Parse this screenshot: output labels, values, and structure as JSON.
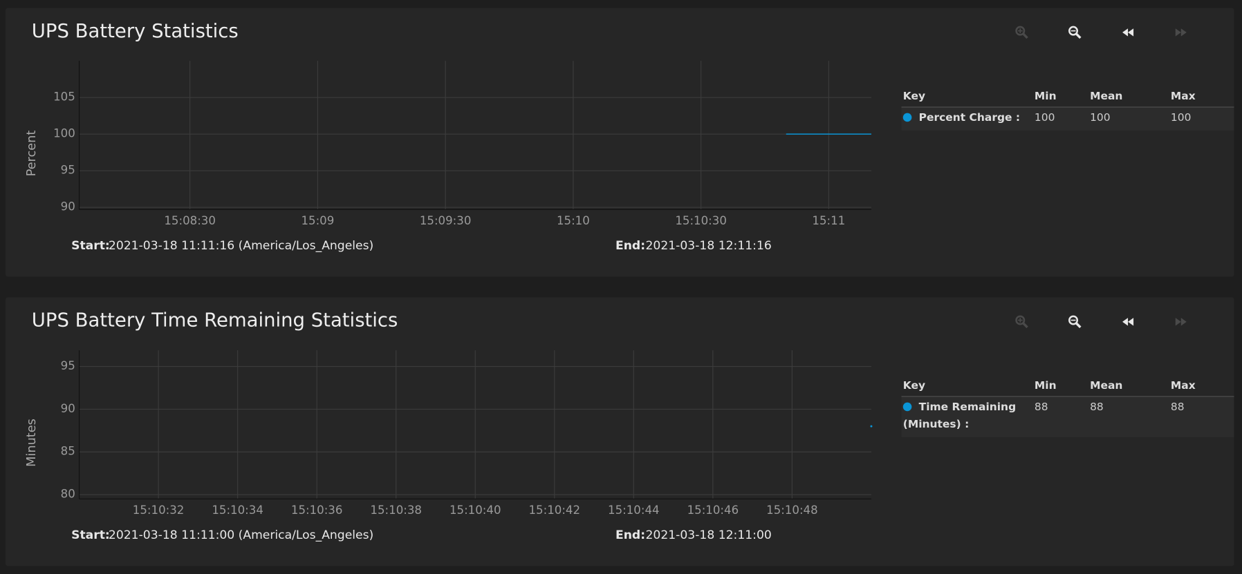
{
  "chart_data": [
    {
      "type": "line",
      "title": "UPS Battery Statistics",
      "y_label": "Percent",
      "x": [
        54650,
        54660,
        54670
      ],
      "xlim": [
        54484,
        54670
      ],
      "xticks": [
        {
          "value": 54510,
          "label": "15:08:30"
        },
        {
          "value": 54540,
          "label": "15:09"
        },
        {
          "value": 54570,
          "label": "15:09:30"
        },
        {
          "value": 54600,
          "label": "15:10"
        },
        {
          "value": 54630,
          "label": "15:10:30"
        },
        {
          "value": 54660,
          "label": "15:11"
        }
      ],
      "ylim": [
        89.7,
        110
      ],
      "yticks": [
        90,
        95,
        100,
        105
      ],
      "grid": true,
      "legend_header": [
        "Key",
        "Min",
        "Mean",
        "Max"
      ],
      "series": [
        {
          "name": "Percent Charge :",
          "color": "#0a95d6",
          "values": [
            100,
            100,
            100
          ],
          "min": 100,
          "mean": 100,
          "max": 100
        }
      ],
      "start_label": "Start:",
      "start": "2021-03-18 11:11:16 (America/Los_Angeles)",
      "end_label": "End:",
      "end": "2021-03-18 12:11:16"
    },
    {
      "type": "line",
      "title": "UPS Battery Time Remaining Statistics",
      "y_label": "Minutes",
      "x": [
        54650
      ],
      "xlim": [
        54630,
        54650
      ],
      "xticks": [
        {
          "value": 54632,
          "label": "15:10:32"
        },
        {
          "value": 54634,
          "label": "15:10:34"
        },
        {
          "value": 54636,
          "label": "15:10:36"
        },
        {
          "value": 54638,
          "label": "15:10:38"
        },
        {
          "value": 54640,
          "label": "15:10:40"
        },
        {
          "value": 54642,
          "label": "15:10:42"
        },
        {
          "value": 54644,
          "label": "15:10:44"
        },
        {
          "value": 54646,
          "label": "15:10:46"
        },
        {
          "value": 54648,
          "label": "15:10:48"
        }
      ],
      "ylim": [
        79.5,
        96.9
      ],
      "yticks": [
        80,
        85,
        90,
        95
      ],
      "grid": true,
      "legend_header": [
        "Key",
        "Min",
        "Mean",
        "Max"
      ],
      "series": [
        {
          "name": "Time Remaining (Minutes) :",
          "color": "#0a95d6",
          "values": [
            88
          ],
          "min": 88,
          "mean": 88,
          "max": 88
        }
      ],
      "start_label": "Start:",
      "start": "2021-03-18 11:11:00 (America/Los_Angeles)",
      "end_label": "End:",
      "end": "2021-03-18 12:11:00"
    }
  ]
}
